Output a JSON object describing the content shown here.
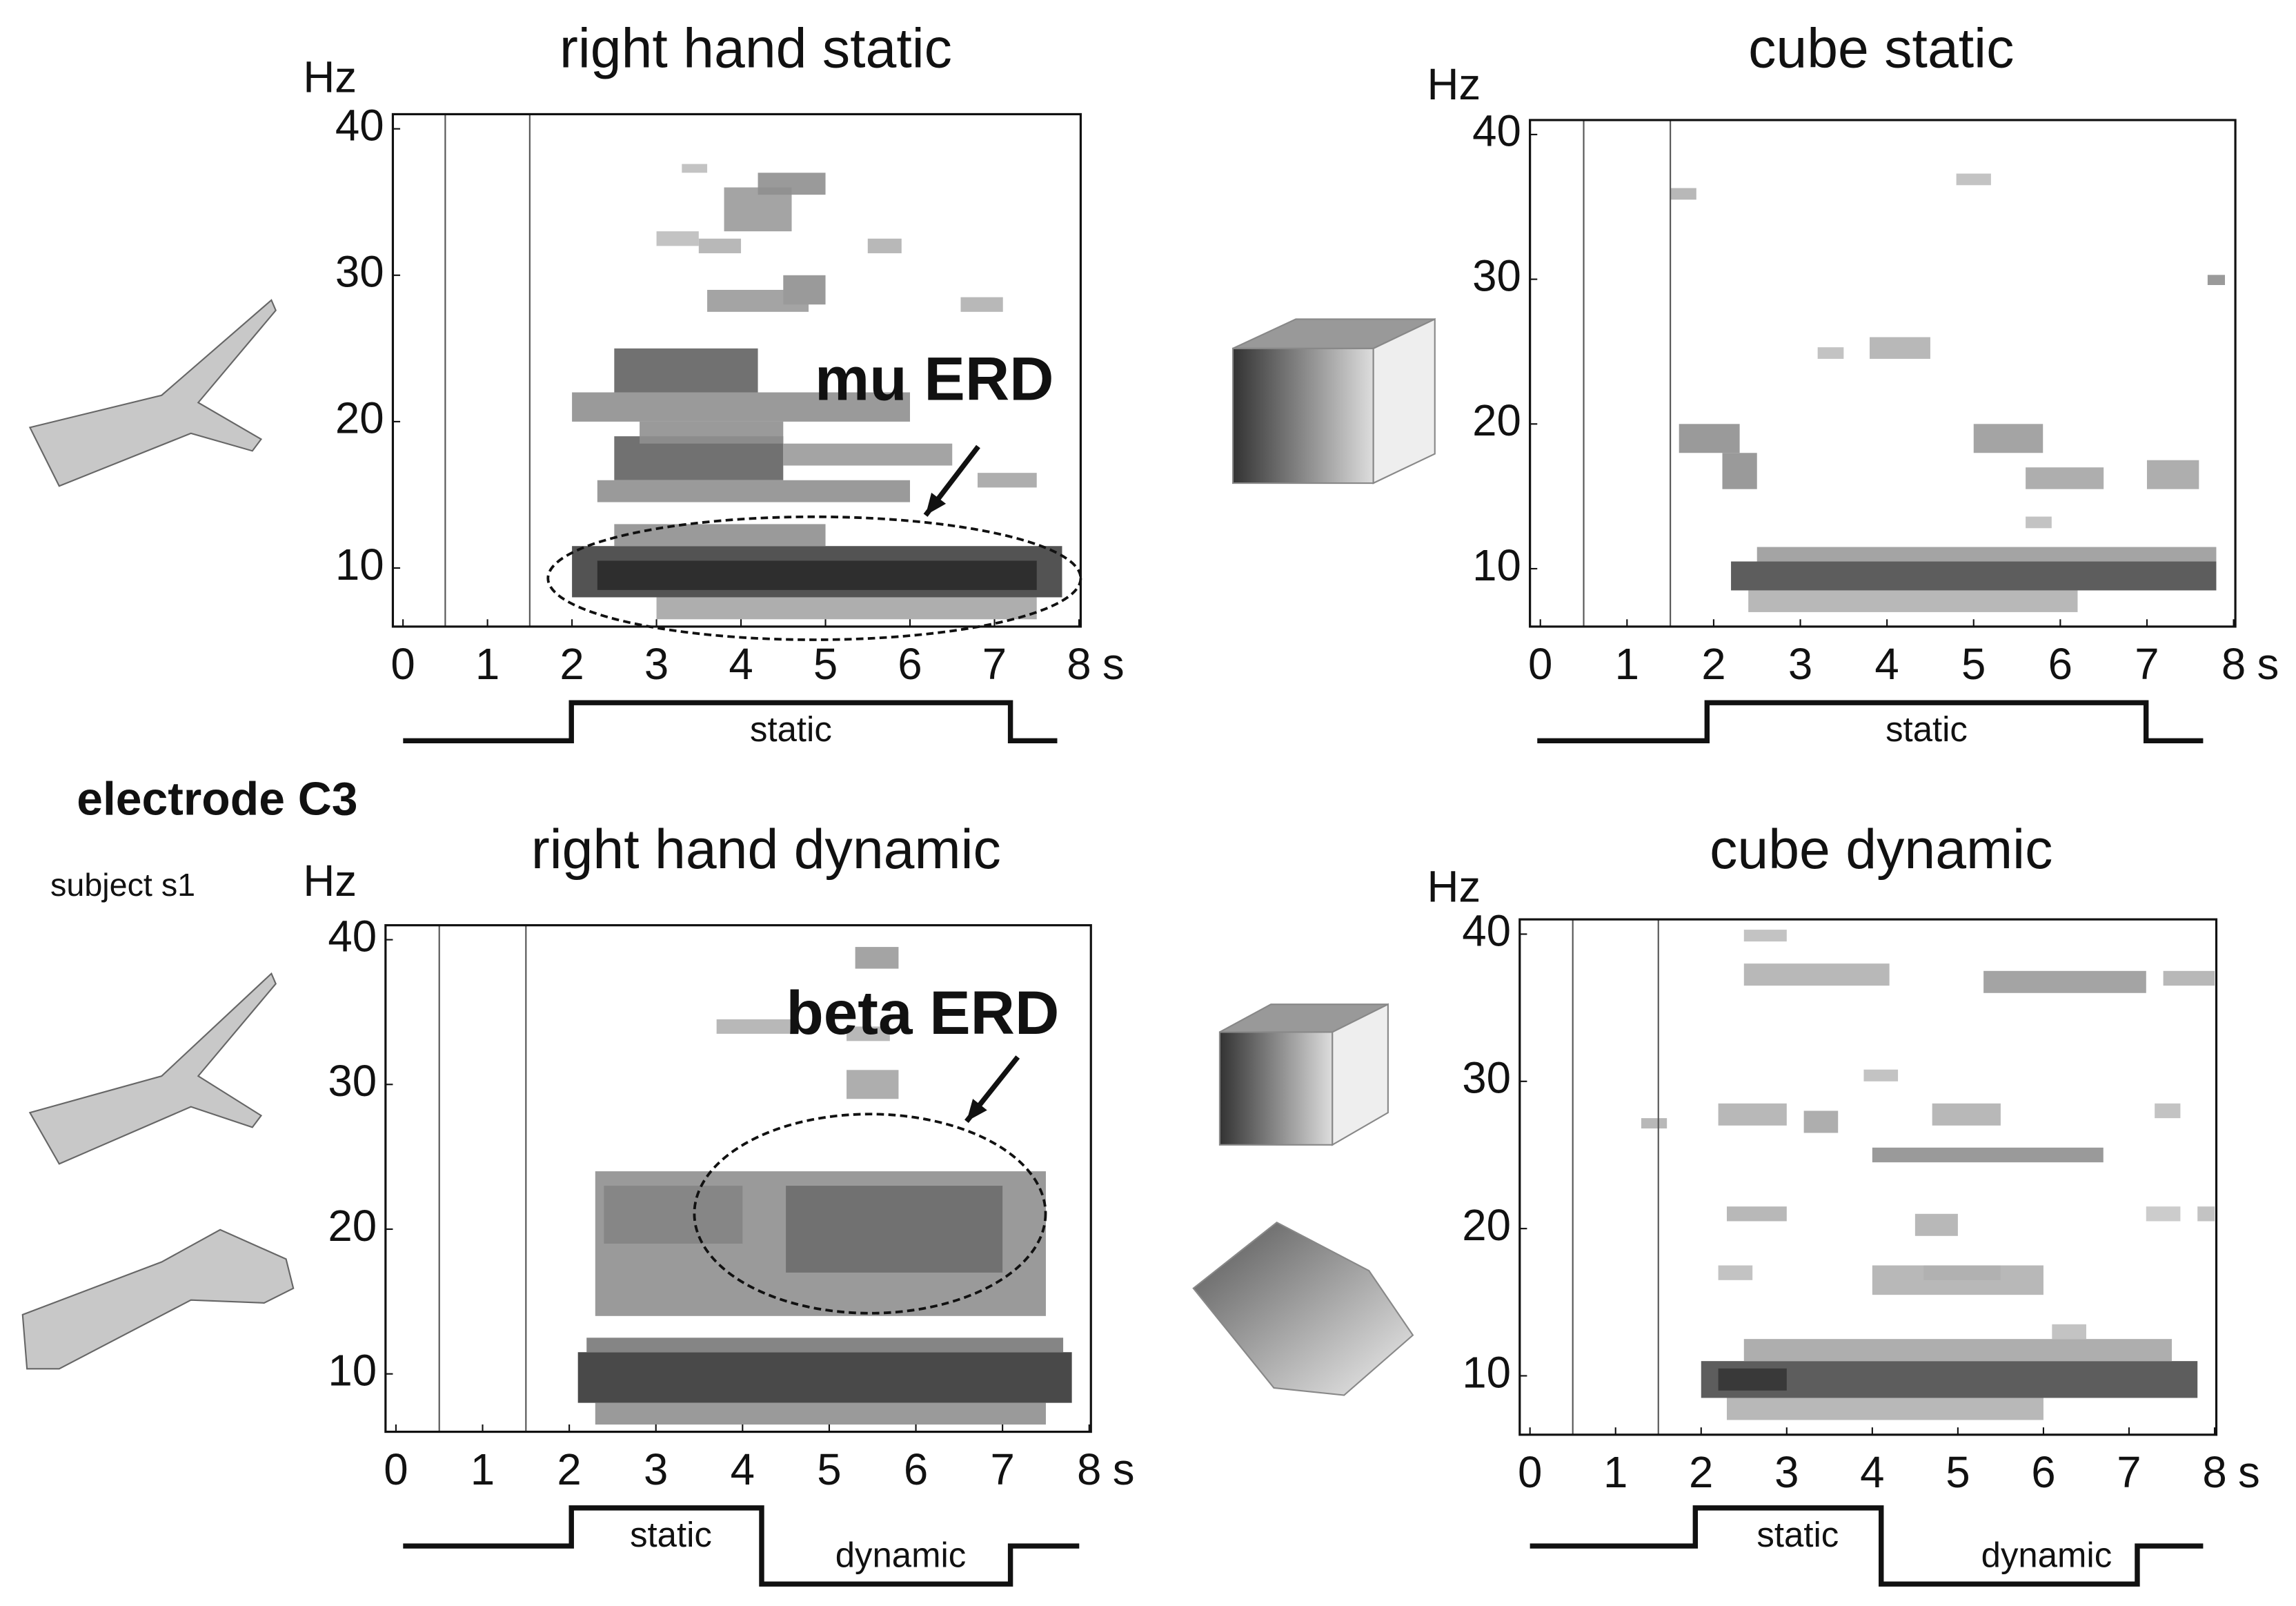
{
  "figure": {
    "electrode": "electrode C3",
    "subject": "subject s1"
  },
  "chart_data": [
    {
      "type": "heatmap",
      "title": "right hand static",
      "xlabel": "s",
      "ylabel": "Hz",
      "xlim": [
        -0.12,
        8.02
      ],
      "ylim": [
        6,
        41
      ],
      "xticks": [
        0,
        1,
        2,
        3,
        4,
        5,
        6,
        7,
        8
      ],
      "yticks": [
        10,
        20,
        30,
        40
      ],
      "markers": [
        0.5,
        1.5
      ],
      "annotation": "mu ERD",
      "protocol": [
        "static"
      ],
      "cells": [
        {
          "t": [
            2.0,
            7.8
          ],
          "f": [
            8,
            11.5
          ],
          "v": 0.85
        },
        {
          "t": [
            2.3,
            7.5
          ],
          "f": [
            8.5,
            10.5
          ],
          "v": 0.95
        },
        {
          "t": [
            3.0,
            7.5
          ],
          "f": [
            6.5,
            8
          ],
          "v": 0.4
        },
        {
          "t": [
            2.5,
            5.0
          ],
          "f": [
            11.5,
            13
          ],
          "v": 0.5
        },
        {
          "t": [
            2.5,
            4.2
          ],
          "f": [
            22,
            25
          ],
          "v": 0.7
        },
        {
          "t": [
            2.0,
            6.0
          ],
          "f": [
            20,
            22
          ],
          "v": 0.5
        },
        {
          "t": [
            2.5,
            4.5
          ],
          "f": [
            16,
            19
          ],
          "v": 0.7
        },
        {
          "t": [
            2.3,
            6.0
          ],
          "f": [
            14.5,
            16
          ],
          "v": 0.5
        },
        {
          "t": [
            4.5,
            6.5
          ],
          "f": [
            17,
            18.5
          ],
          "v": 0.45
        },
        {
          "t": [
            6.8,
            7.5
          ],
          "f": [
            15.5,
            16.5
          ],
          "v": 0.4
        },
        {
          "t": [
            2.8,
            4.5
          ],
          "f": [
            18.5,
            20
          ],
          "v": 0.5
        },
        {
          "t": [
            4.5,
            5.0
          ],
          "f": [
            28,
            30
          ],
          "v": 0.5
        },
        {
          "t": [
            3.6,
            4.8
          ],
          "f": [
            27.5,
            29
          ],
          "v": 0.45
        },
        {
          "t": [
            6.6,
            7.1
          ],
          "f": [
            27.5,
            28.5
          ],
          "v": 0.35
        },
        {
          "t": [
            3.8,
            4.6
          ],
          "f": [
            33,
            36
          ],
          "v": 0.45
        },
        {
          "t": [
            4.2,
            5.0
          ],
          "f": [
            35.5,
            37
          ],
          "v": 0.5
        },
        {
          "t": [
            3.3,
            3.6
          ],
          "f": [
            37,
            37.6
          ],
          "v": 0.3
        },
        {
          "t": [
            3.5,
            4.0
          ],
          "f": [
            31.5,
            32.5
          ],
          "v": 0.35
        },
        {
          "t": [
            5.5,
            5.9
          ],
          "f": [
            31.5,
            32.5
          ],
          "v": 0.35
        },
        {
          "t": [
            3.0,
            3.5
          ],
          "f": [
            32,
            33
          ],
          "v": 0.3
        }
      ]
    },
    {
      "type": "heatmap",
      "title": "cube static",
      "xlabel": "s",
      "ylabel": "Hz",
      "xlim": [
        -0.12,
        8.02
      ],
      "ylim": [
        6,
        41
      ],
      "xticks": [
        0,
        1,
        2,
        3,
        4,
        5,
        6,
        7,
        8
      ],
      "yticks": [
        10,
        20,
        30,
        40
      ],
      "markers": [
        0.5,
        1.5
      ],
      "protocol": [
        "static"
      ],
      "cells": [
        {
          "t": [
            2.2,
            7.8
          ],
          "f": [
            8.5,
            10.5
          ],
          "v": 0.8
        },
        {
          "t": [
            2.5,
            7.8
          ],
          "f": [
            10.5,
            11.5
          ],
          "v": 0.45
        },
        {
          "t": [
            2.4,
            6.2
          ],
          "f": [
            7,
            8.5
          ],
          "v": 0.35
        },
        {
          "t": [
            1.6,
            2.3
          ],
          "f": [
            18,
            20
          ],
          "v": 0.5
        },
        {
          "t": [
            2.1,
            2.5
          ],
          "f": [
            15.5,
            18
          ],
          "v": 0.5
        },
        {
          "t": [
            5.0,
            5.8
          ],
          "f": [
            18,
            20
          ],
          "v": 0.45
        },
        {
          "t": [
            5.6,
            6.5
          ],
          "f": [
            15.5,
            17
          ],
          "v": 0.4
        },
        {
          "t": [
            7.0,
            7.6
          ],
          "f": [
            15.5,
            17.5
          ],
          "v": 0.4
        },
        {
          "t": [
            5.6,
            5.9
          ],
          "f": [
            12.8,
            13.6
          ],
          "v": 0.3
        },
        {
          "t": [
            3.8,
            4.5
          ],
          "f": [
            24.5,
            26
          ],
          "v": 0.35
        },
        {
          "t": [
            3.2,
            3.5
          ],
          "f": [
            24.5,
            25.3
          ],
          "v": 0.3
        },
        {
          "t": [
            1.5,
            1.8
          ],
          "f": [
            35.5,
            36.3
          ],
          "v": 0.35
        },
        {
          "t": [
            4.8,
            5.2
          ],
          "f": [
            36.5,
            37.3
          ],
          "v": 0.3
        },
        {
          "t": [
            7.7,
            7.9
          ],
          "f": [
            29.6,
            30.3
          ],
          "v": 0.5
        }
      ]
    },
    {
      "type": "heatmap",
      "title": "right hand dynamic",
      "xlabel": "s",
      "ylabel": "Hz",
      "xlim": [
        -0.12,
        8.02
      ],
      "ylim": [
        6,
        41
      ],
      "xticks": [
        0,
        1,
        2,
        3,
        4,
        5,
        6,
        7,
        8
      ],
      "yticks": [
        10,
        20,
        30,
        40
      ],
      "markers": [
        0.5,
        1.5
      ],
      "annotation": "beta ERD",
      "protocol": [
        "static",
        "dynamic"
      ],
      "cells": [
        {
          "t": [
            2.1,
            7.8
          ],
          "f": [
            8,
            11.5
          ],
          "v": 0.9
        },
        {
          "t": [
            2.2,
            7.7
          ],
          "f": [
            11.5,
            12.5
          ],
          "v": 0.6
        },
        {
          "t": [
            2.3,
            7.5
          ],
          "f": [
            6.5,
            8
          ],
          "v": 0.5
        },
        {
          "t": [
            2.3,
            7.5
          ],
          "f": [
            14,
            24
          ],
          "v": 0.5
        },
        {
          "t": [
            4.5,
            7.0
          ],
          "f": [
            17,
            23
          ],
          "v": 0.65
        },
        {
          "t": [
            2.4,
            4.0
          ],
          "f": [
            19,
            23
          ],
          "v": 0.55
        },
        {
          "t": [
            5.2,
            5.8
          ],
          "f": [
            29,
            31
          ],
          "v": 0.4
        },
        {
          "t": [
            5.3,
            5.8
          ],
          "f": [
            38,
            39.5
          ],
          "v": 0.45
        },
        {
          "t": [
            3.7,
            4.6
          ],
          "f": [
            33.5,
            34.5
          ],
          "v": 0.35
        },
        {
          "t": [
            5.2,
            5.7
          ],
          "f": [
            33,
            34
          ],
          "v": 0.35
        }
      ]
    },
    {
      "type": "heatmap",
      "title": "cube dynamic",
      "xlabel": "s",
      "ylabel": "Hz",
      "xlim": [
        -0.12,
        8.02
      ],
      "ylim": [
        6,
        41
      ],
      "xticks": [
        0,
        1,
        2,
        3,
        4,
        5,
        6,
        7,
        8
      ],
      "yticks": [
        10,
        20,
        30,
        40
      ],
      "markers": [
        0.5,
        1.5
      ],
      "protocol": [
        "static",
        "dynamic"
      ],
      "cells": [
        {
          "t": [
            2.0,
            7.8
          ],
          "f": [
            8.5,
            11
          ],
          "v": 0.8
        },
        {
          "t": [
            2.2,
            3.0
          ],
          "f": [
            9,
            10.5
          ],
          "v": 0.9
        },
        {
          "t": [
            2.5,
            7.5
          ],
          "f": [
            11,
            12.5
          ],
          "v": 0.4
        },
        {
          "t": [
            2.3,
            6.0
          ],
          "f": [
            7,
            8.5
          ],
          "v": 0.35
        },
        {
          "t": [
            4.0,
            6.0
          ],
          "f": [
            15.5,
            17.5
          ],
          "v": 0.35
        },
        {
          "t": [
            4.0,
            6.7
          ],
          "f": [
            24.5,
            25.5
          ],
          "v": 0.5
        },
        {
          "t": [
            2.3,
            3.0
          ],
          "f": [
            20.5,
            21.5
          ],
          "v": 0.35
        },
        {
          "t": [
            1.3,
            1.6
          ],
          "f": [
            26.8,
            27.5
          ],
          "v": 0.35
        },
        {
          "t": [
            2.2,
            3.0
          ],
          "f": [
            27,
            28.5
          ],
          "v": 0.35
        },
        {
          "t": [
            3.2,
            3.6
          ],
          "f": [
            26.5,
            28
          ],
          "v": 0.4
        },
        {
          "t": [
            4.7,
            5.5
          ],
          "f": [
            27,
            28.5
          ],
          "v": 0.35
        },
        {
          "t": [
            7.3,
            7.6
          ],
          "f": [
            27.5,
            28.5
          ],
          "v": 0.3
        },
        {
          "t": [
            2.5,
            4.2
          ],
          "f": [
            36.5,
            38
          ],
          "v": 0.35
        },
        {
          "t": [
            5.3,
            7.2
          ],
          "f": [
            36,
            37.5
          ],
          "v": 0.45
        },
        {
          "t": [
            7.4,
            8.0
          ],
          "f": [
            36.5,
            37.5
          ],
          "v": 0.35
        },
        {
          "t": [
            2.5,
            3.0
          ],
          "f": [
            39.5,
            40.3
          ],
          "v": 0.3
        },
        {
          "t": [
            4.5,
            5.0
          ],
          "f": [
            19.5,
            21
          ],
          "v": 0.35
        },
        {
          "t": [
            2.2,
            2.6
          ],
          "f": [
            16.5,
            17.5
          ],
          "v": 0.3
        },
        {
          "t": [
            4.6,
            5.5
          ],
          "f": [
            16.5,
            17.5
          ],
          "v": 0.35
        },
        {
          "t": [
            7.2,
            7.6
          ],
          "f": [
            20.5,
            21.5
          ],
          "v": 0.25
        },
        {
          "t": [
            7.8,
            8.0
          ],
          "f": [
            20.5,
            21.5
          ],
          "v": 0.3
        },
        {
          "t": [
            3.9,
            4.3
          ],
          "f": [
            30,
            30.8
          ],
          "v": 0.3
        },
        {
          "t": [
            6.1,
            6.5
          ],
          "f": [
            12.5,
            13.5
          ],
          "v": 0.3
        }
      ]
    }
  ]
}
